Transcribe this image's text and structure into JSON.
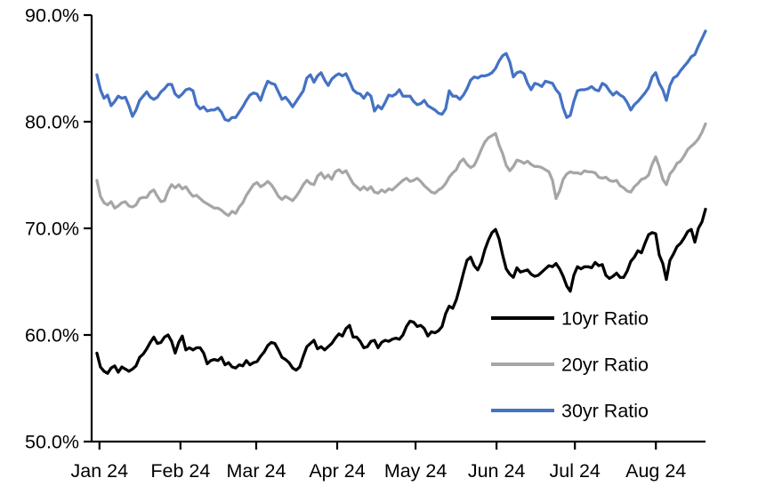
{
  "chart_data": {
    "type": "line",
    "title": "",
    "background": "#ffffff",
    "axis_color": "#000000",
    "y_axis": {
      "min": 50,
      "max": 90,
      "tick_step": 10,
      "tick_labels": [
        "50.0%",
        "60.0%",
        "70.0%",
        "80.0%",
        "90.0%"
      ],
      "format": "percent_one_decimal",
      "gridlines": false
    },
    "x_axis": {
      "tick_labels": [
        "Jan 24",
        "Feb 24",
        "Mar 24",
        "Apr 24",
        "May 24",
        "Jun 24",
        "Jul 24",
        "Aug 24"
      ],
      "tick_days": [
        0,
        31,
        60,
        91,
        121,
        152,
        182,
        213
      ],
      "domain_days": [
        -3,
        232
      ]
    },
    "sampling": {
      "first_day": -1,
      "last_day": 232
    },
    "legend": {
      "position": "inside-lower-right",
      "items": [
        "10yr Ratio",
        "20yr Ratio",
        "30yr Ratio"
      ]
    },
    "series": [
      {
        "name": "10yr Ratio",
        "color": "#000000",
        "values": [
          58.3,
          57.0,
          56.6,
          56.4,
          56.9,
          57.1,
          56.5,
          57.0,
          56.8,
          56.6,
          56.8,
          57.1,
          57.9,
          58.2,
          58.7,
          59.3,
          59.8,
          59.2,
          59.3,
          59.8,
          60.0,
          59.4,
          58.3,
          59.3,
          59.9,
          58.6,
          58.8,
          58.6,
          58.8,
          58.8,
          58.3,
          57.3,
          57.6,
          57.7,
          57.6,
          57.9,
          57.2,
          57.4,
          57.0,
          56.9,
          57.2,
          57.1,
          57.6,
          57.2,
          57.4,
          57.5,
          58.0,
          58.4,
          59.0,
          59.3,
          59.2,
          58.6,
          57.9,
          57.7,
          57.4,
          56.9,
          56.7,
          57.0,
          58.0,
          58.9,
          59.2,
          59.5,
          58.7,
          58.9,
          58.6,
          58.9,
          59.2,
          59.7,
          60.1,
          59.9,
          60.6,
          60.9,
          59.8,
          59.8,
          59.4,
          58.8,
          58.9,
          59.4,
          59.5,
          58.8,
          59.3,
          59.5,
          59.4,
          59.6,
          59.7,
          59.6,
          60.0,
          60.8,
          61.3,
          61.2,
          60.8,
          60.9,
          60.6,
          59.9,
          60.3,
          60.2,
          60.4,
          60.8,
          62.0,
          62.7,
          62.5,
          63.3,
          64.5,
          65.8,
          67.0,
          67.3,
          66.5,
          66.1,
          66.8,
          68.0,
          68.9,
          69.6,
          69.9,
          69.0,
          67.5,
          66.2,
          65.7,
          65.4,
          66.3,
          65.9,
          66.0,
          66.1,
          65.7,
          65.5,
          65.6,
          65.9,
          66.2,
          66.5,
          66.4,
          66.7,
          66.2,
          65.5,
          64.6,
          64.1,
          65.6,
          66.4,
          66.2,
          66.4,
          66.4,
          66.3,
          66.8,
          66.5,
          66.6,
          65.6,
          65.3,
          65.5,
          65.8,
          65.4,
          65.4,
          66.0,
          66.9,
          67.3,
          67.9,
          67.7,
          68.6,
          69.4,
          69.6,
          69.5,
          67.5,
          66.7,
          65.2,
          67.0,
          67.6,
          68.3,
          68.6,
          69.1,
          69.7,
          69.9,
          68.7,
          70.0,
          70.6,
          71.8
        ]
      },
      {
        "name": "20yr Ratio",
        "color": "#A6A6A6",
        "values": [
          74.5,
          73.0,
          72.4,
          72.2,
          72.5,
          71.9,
          72.1,
          72.4,
          72.5,
          72.1,
          72.0,
          72.2,
          72.8,
          72.9,
          72.9,
          73.4,
          73.6,
          73.0,
          72.5,
          72.6,
          73.5,
          74.1,
          73.8,
          74.1,
          73.7,
          73.9,
          73.4,
          73.0,
          73.1,
          72.8,
          72.5,
          72.3,
          72.1,
          71.9,
          71.9,
          71.7,
          71.4,
          71.2,
          71.6,
          71.4,
          72.0,
          72.4,
          73.1,
          73.6,
          74.1,
          74.3,
          73.9,
          74.1,
          74.4,
          74.1,
          73.6,
          73.0,
          72.7,
          73.0,
          72.8,
          72.6,
          73.0,
          73.5,
          74.1,
          74.5,
          74.2,
          74.1,
          74.9,
          75.2,
          74.7,
          75.0,
          74.6,
          75.3,
          75.5,
          75.2,
          75.4,
          74.8,
          74.2,
          73.9,
          73.6,
          73.9,
          73.6,
          73.9,
          73.4,
          73.3,
          73.6,
          73.4,
          73.7,
          73.6,
          73.9,
          74.2,
          74.5,
          74.7,
          74.4,
          74.5,
          74.7,
          74.4,
          74.0,
          73.7,
          73.4,
          73.3,
          73.6,
          73.8,
          74.2,
          74.8,
          75.2,
          75.5,
          76.2,
          76.5,
          76.0,
          75.7,
          75.9,
          76.6,
          77.4,
          78.1,
          78.5,
          78.7,
          78.9,
          77.8,
          77.0,
          75.9,
          75.4,
          75.8,
          76.4,
          76.3,
          76.1,
          76.3,
          76.0,
          75.8,
          75.8,
          75.7,
          75.5,
          75.3,
          74.5,
          72.8,
          73.5,
          74.6,
          75.1,
          75.3,
          75.2,
          75.2,
          75.1,
          75.4,
          75.3,
          75.3,
          75.2,
          74.8,
          74.7,
          74.8,
          74.5,
          74.4,
          74.5,
          74.0,
          73.8,
          73.5,
          73.4,
          73.9,
          74.2,
          74.6,
          74.7,
          75.0,
          76.0,
          76.7,
          75.8,
          74.6,
          74.1,
          75.1,
          75.5,
          76.1,
          76.3,
          76.8,
          77.4,
          77.7,
          78.0,
          78.4,
          79.0,
          79.8
        ]
      },
      {
        "name": "30yr Ratio",
        "color": "#4472C4",
        "values": [
          84.4,
          83.0,
          82.2,
          82.5,
          81.5,
          81.9,
          82.4,
          82.2,
          82.3,
          81.5,
          80.5,
          81.1,
          82.0,
          82.4,
          82.8,
          82.3,
          82.1,
          82.3,
          82.8,
          83.1,
          83.5,
          83.5,
          82.6,
          82.3,
          82.6,
          83.0,
          83.1,
          82.9,
          81.6,
          81.2,
          81.4,
          81.0,
          81.1,
          81.1,
          81.3,
          80.9,
          80.2,
          80.1,
          80.4,
          80.4,
          80.9,
          81.4,
          82.0,
          82.5,
          82.7,
          82.6,
          82.0,
          83.0,
          83.8,
          83.6,
          83.5,
          82.8,
          82.1,
          82.3,
          81.9,
          81.4,
          81.9,
          82.4,
          82.9,
          84.1,
          84.4,
          83.7,
          84.3,
          84.6,
          83.9,
          83.4,
          84.0,
          84.3,
          84.5,
          84.3,
          84.5,
          83.8,
          83.0,
          82.7,
          82.6,
          82.2,
          82.7,
          82.4,
          81.0,
          81.5,
          81.2,
          81.8,
          82.5,
          82.4,
          82.6,
          83.0,
          82.4,
          82.4,
          82.4,
          81.9,
          81.6,
          81.7,
          82.0,
          81.5,
          81.3,
          81.1,
          80.8,
          80.7,
          81.2,
          82.9,
          82.4,
          82.4,
          82.1,
          82.5,
          83.1,
          83.9,
          84.2,
          84.1,
          84.3,
          84.3,
          84.4,
          84.6,
          85.0,
          85.7,
          86.2,
          86.4,
          85.6,
          84.2,
          84.6,
          84.7,
          84.5,
          83.6,
          83.0,
          83.6,
          83.5,
          83.3,
          83.8,
          83.7,
          83.6,
          83.0,
          82.6,
          81.3,
          80.4,
          80.6,
          81.9,
          82.9,
          83.0,
          83.0,
          83.1,
          83.3,
          83.0,
          82.9,
          83.6,
          83.4,
          82.9,
          82.5,
          82.8,
          82.5,
          82.3,
          81.8,
          81.1,
          81.6,
          81.9,
          82.3,
          82.7,
          83.2,
          84.2,
          84.6,
          83.6,
          83.0,
          82.0,
          83.4,
          84.1,
          84.3,
          84.8,
          85.2,
          85.6,
          86.1,
          86.3,
          87.1,
          87.8,
          88.5
        ]
      }
    ]
  }
}
